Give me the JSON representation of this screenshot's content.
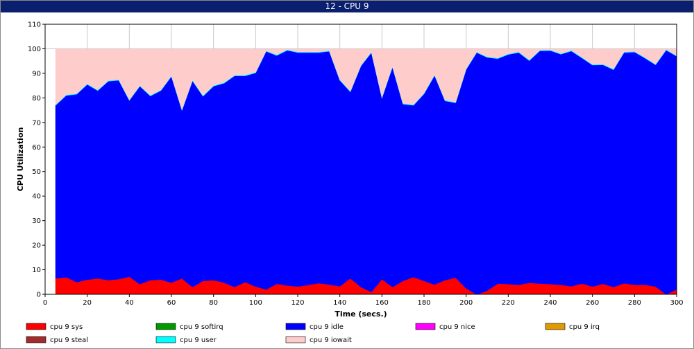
{
  "window": {
    "title": "12 - CPU 9"
  },
  "chart_data": {
    "type": "area",
    "stacked": true,
    "title": "12 - CPU 9",
    "xlabel": "Time (secs.)",
    "ylabel": "CPU Utilization",
    "xlim": [
      0,
      300
    ],
    "ylim": [
      0,
      110
    ],
    "xticks": [
      0,
      20,
      40,
      60,
      80,
      100,
      120,
      140,
      160,
      180,
      200,
      220,
      240,
      260,
      280,
      300
    ],
    "yticks": [
      0,
      10,
      20,
      30,
      40,
      50,
      60,
      70,
      80,
      90,
      100,
      110
    ],
    "grid": true,
    "legend_position": "bottom",
    "x": [
      5,
      10,
      15,
      20,
      25,
      30,
      35,
      40,
      45,
      50,
      55,
      60,
      65,
      70,
      75,
      80,
      85,
      90,
      95,
      100,
      105,
      110,
      115,
      120,
      125,
      130,
      135,
      140,
      145,
      150,
      155,
      160,
      165,
      170,
      175,
      180,
      185,
      190,
      195,
      200,
      205,
      210,
      215,
      220,
      225,
      230,
      235,
      240,
      245,
      250,
      255,
      260,
      265,
      270,
      275,
      280,
      285,
      290,
      295,
      300
    ],
    "series": [
      {
        "name": "cpu 9 sys",
        "color": "#ff0000",
        "values": [
          6.5,
          7,
          5,
          6,
          6.5,
          5.8,
          6.2,
          7.2,
          4.2,
          5.8,
          6,
          4.8,
          6.5,
          3,
          5.5,
          5.8,
          4.8,
          3,
          5,
          3.2,
          2,
          4.3,
          3.6,
          3.2,
          3.8,
          4.6,
          4,
          3.3,
          6.5,
          3,
          1,
          6.2,
          3,
          5.5,
          7,
          5.5,
          4,
          5.8,
          6.8,
          2.5,
          0,
          1.5,
          4.4,
          4.2,
          3.9,
          4.7,
          4.4,
          4.2,
          3.9,
          3.3,
          4.4,
          3.2,
          4.3,
          3,
          4.5,
          3.9,
          3.9,
          3.2,
          0,
          2
        ]
      },
      {
        "name": "cpu 9 softirq",
        "color": "#009900",
        "values": [
          0,
          0,
          0,
          0,
          0,
          0,
          0,
          0,
          0,
          0,
          0,
          0,
          0,
          0,
          0,
          0,
          0,
          0,
          0,
          0,
          0,
          0,
          0,
          0,
          0,
          0,
          0,
          0,
          0,
          0,
          0,
          0,
          0,
          0,
          0,
          0,
          0,
          0,
          0,
          0,
          0,
          0,
          0,
          0,
          0,
          0,
          0,
          0,
          0,
          0,
          0,
          0,
          0,
          0,
          0,
          0,
          0,
          0,
          0,
          0
        ]
      },
      {
        "name": "cpu 9 idle",
        "color": "#0000ff",
        "values": [
          70.5,
          74,
          76.5,
          79.5,
          76.5,
          81,
          81,
          71.8,
          80.6,
          75,
          77,
          84,
          68.5,
          84,
          75.2,
          79,
          81.2,
          86,
          84,
          87,
          97,
          93,
          95.8,
          95.3,
          94.7,
          93.9,
          95,
          83.9,
          76,
          90,
          97.5,
          73.8,
          89.6,
          72,
          70,
          76.2,
          85.2,
          73,
          71.2,
          89.1,
          98.5,
          95,
          91.6,
          93.5,
          94.6,
          90.5,
          94.8,
          95.1,
          93.9,
          95.8,
          91.9,
          90.2,
          89.2,
          88.5,
          94,
          94.8,
          92.3,
          90.3,
          99.5,
          95
        ]
      },
      {
        "name": "cpu 9 nice",
        "color": "#ff00ff",
        "values": [
          0,
          0,
          0,
          0,
          0,
          0,
          0,
          0,
          0,
          0,
          0,
          0,
          0,
          0,
          0,
          0,
          0,
          0,
          0,
          0,
          0,
          0,
          0,
          0,
          0,
          0,
          0,
          0,
          0,
          0,
          0,
          0,
          0,
          0,
          0,
          0,
          0,
          0,
          0,
          0,
          0,
          0,
          0,
          0,
          0,
          0,
          0,
          0,
          0,
          0,
          0,
          0,
          0,
          0,
          0,
          0,
          0,
          0,
          0,
          0
        ]
      },
      {
        "name": "cpu 9 irq",
        "color": "#e09a00",
        "values": [
          0,
          0,
          0,
          0,
          0,
          0,
          0,
          0,
          0,
          0,
          0,
          0,
          0,
          0,
          0,
          0,
          0,
          0,
          0,
          0,
          0,
          0,
          0,
          0,
          0,
          0,
          0,
          0,
          0,
          0,
          0,
          0,
          0,
          0,
          0,
          0,
          0,
          0,
          0,
          0,
          0,
          0,
          0,
          0,
          0,
          0,
          0,
          0,
          0,
          0,
          0,
          0,
          0,
          0,
          0,
          0,
          0,
          0,
          0,
          0
        ]
      },
      {
        "name": "cpu 9 steal",
        "color": "#a52a2a",
        "values": [
          0,
          0,
          0,
          0,
          0,
          0,
          0,
          0,
          0,
          0,
          0,
          0,
          0,
          0,
          0,
          0,
          0,
          0,
          0,
          0,
          0,
          0,
          0,
          0,
          0,
          0,
          0,
          0,
          0,
          0,
          0,
          0,
          0,
          0,
          0,
          0,
          0,
          0,
          0,
          0,
          0,
          0,
          0,
          0,
          0,
          0,
          0,
          0,
          0,
          0,
          0,
          0,
          0,
          0,
          0,
          0,
          0,
          0,
          0,
          0
        ]
      },
      {
        "name": "cpu 9 user",
        "color": "#00ffff",
        "values": [
          0.3,
          0.3,
          0.3,
          0.3,
          0.3,
          0.3,
          0.3,
          0.3,
          0.3,
          0.3,
          0.3,
          0.3,
          0.3,
          0.3,
          0.3,
          0.3,
          0.3,
          0.3,
          0.3,
          0.3,
          0.3,
          0.3,
          0.3,
          0.3,
          0.3,
          0.3,
          0.3,
          0.3,
          0.3,
          0.3,
          0.3,
          0.3,
          0.3,
          0.3,
          0.3,
          0.3,
          0.3,
          0.3,
          0.3,
          0.3,
          0.3,
          0.3,
          0.3,
          0.3,
          0.3,
          0.3,
          0.3,
          0.3,
          0.3,
          0.3,
          0.3,
          0.3,
          0.3,
          0.3,
          0.3,
          0.3,
          0.3,
          0.3,
          0.3,
          0.3
        ]
      },
      {
        "name": "cpu 9 iowait",
        "color": "#ffcccc",
        "values": [
          22.7,
          18.7,
          18.2,
          14.2,
          16.7,
          12.9,
          12.4,
          20.7,
          14.9,
          18.9,
          16.7,
          10.9,
          24.7,
          12.7,
          19,
          14.9,
          13.7,
          10.7,
          10.7,
          9.5,
          0.7,
          2.4,
          0,
          1.2,
          1.2,
          1.2,
          0.7,
          12.5,
          17.2,
          6.7,
          1.2,
          19.7,
          7.1,
          22.2,
          22.7,
          18,
          10.5,
          20.9,
          21.7,
          8.1,
          1.2,
          3.2,
          3.7,
          2,
          1.2,
          4.5,
          0.5,
          0.4,
          1.9,
          0.6,
          3.4,
          6.3,
          6.2,
          8.2,
          1.2,
          1,
          3.5,
          6.2,
          0.2,
          2.7
        ]
      }
    ]
  }
}
